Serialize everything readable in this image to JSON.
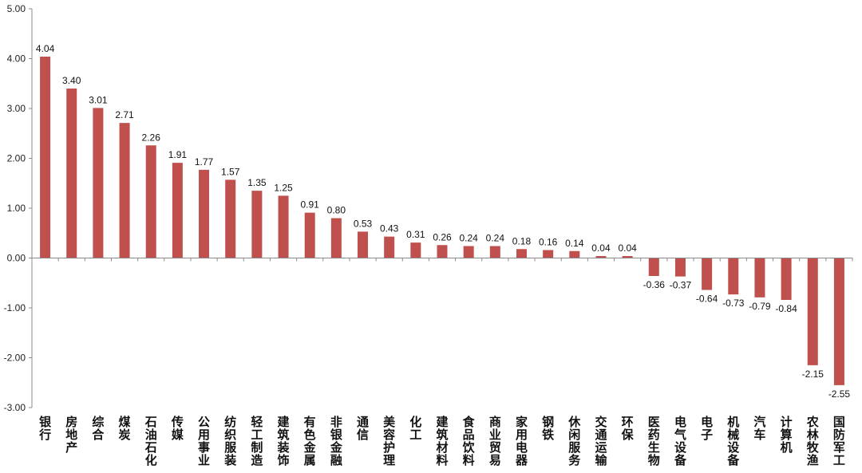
{
  "chart_data": {
    "type": "bar",
    "title": "",
    "xlabel": "",
    "ylabel": "",
    "ylim": [
      -3.0,
      5.0
    ],
    "yticks": [
      "5.00",
      "4.00",
      "3.00",
      "2.00",
      "1.00",
      "0.00",
      "-1.00",
      "-2.00",
      "-3.00"
    ],
    "grid": false,
    "legend": "none",
    "bar_color": "#C0504D",
    "categories": [
      "银行",
      "房地产",
      "综合",
      "煤炭",
      "石油石化",
      "传媒",
      "公用事业",
      "纺织服装",
      "轻工制造",
      "建筑装饰",
      "有色金属",
      "非银金融",
      "通信",
      "美容护理",
      "化工",
      "建筑材料",
      "食品饮料",
      "商业贸易",
      "家用电器",
      "钢铁",
      "休闲服务",
      "交通运输",
      "环保",
      "医药生物",
      "电气设备",
      "电子",
      "机械设备",
      "汽车",
      "计算机",
      "农林牧渔",
      "国防军工"
    ],
    "values": [
      4.04,
      3.4,
      3.01,
      2.71,
      2.26,
      1.91,
      1.77,
      1.57,
      1.35,
      1.25,
      0.91,
      0.8,
      0.53,
      0.43,
      0.31,
      0.26,
      0.24,
      0.24,
      0.18,
      0.16,
      0.14,
      0.04,
      0.04,
      -0.36,
      -0.37,
      -0.64,
      -0.73,
      -0.79,
      -0.84,
      -2.15,
      -2.55
    ],
    "value_labels": [
      "4.04",
      "3.40",
      "3.01",
      "2.71",
      "2.26",
      "1.91",
      "1.77",
      "1.57",
      "1.35",
      "1.25",
      "0.91",
      "0.80",
      "0.53",
      "0.43",
      "0.31",
      "0.26",
      "0.24",
      "0.24",
      "0.18",
      "0.16",
      "0.14",
      "0.04",
      "0.04",
      "-0.36",
      "-0.37",
      "-0.64",
      "-0.73",
      "-0.79",
      "-0.84",
      "-2.15",
      "-2.55"
    ]
  }
}
